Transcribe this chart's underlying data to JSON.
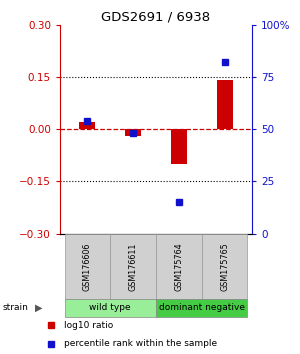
{
  "title": "GDS2691 / 6938",
  "samples": [
    "GSM176606",
    "GSM176611",
    "GSM175764",
    "GSM175765"
  ],
  "log10_ratio": [
    0.02,
    -0.02,
    -0.1,
    0.14
  ],
  "percentile_rank": [
    54,
    48,
    15,
    82
  ],
  "ylim_left": [
    -0.3,
    0.3
  ],
  "ylim_right": [
    0,
    100
  ],
  "yticks_left": [
    -0.3,
    -0.15,
    0,
    0.15,
    0.3
  ],
  "yticks_right": [
    0,
    25,
    50,
    75,
    100
  ],
  "ytick_labels_right": [
    "0",
    "25",
    "50",
    "75",
    "100%"
  ],
  "hline_y": [
    0.15,
    -0.15
  ],
  "bar_color": "#cc0000",
  "dot_color": "#1111cc",
  "dashed_color": "#cc0000",
  "groups": [
    {
      "label": "wild type",
      "indices": [
        0,
        1
      ],
      "color": "#99ee99"
    },
    {
      "label": "dominant negative",
      "indices": [
        2,
        3
      ],
      "color": "#44cc44"
    }
  ],
  "legend_items": [
    {
      "color": "#cc0000",
      "label": "log10 ratio"
    },
    {
      "color": "#1111cc",
      "label": "percentile rank within the sample"
    }
  ],
  "bar_width": 0.35
}
